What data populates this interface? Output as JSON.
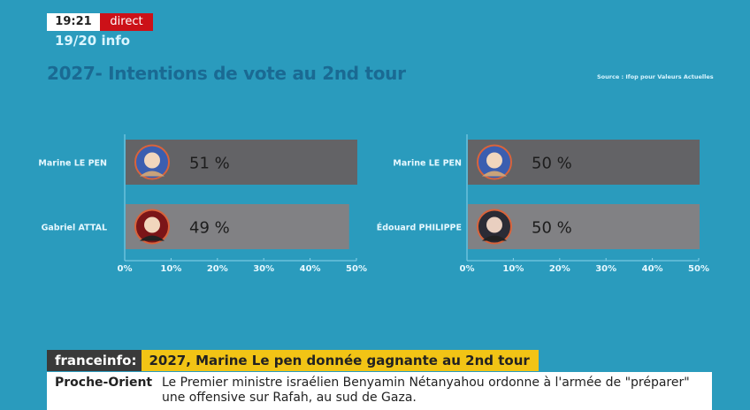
{
  "broadcast": {
    "time": "19:21",
    "live_label": "direct",
    "program": "19/20 info",
    "live_color": "#cc1118"
  },
  "header": {
    "title": "2027- Intentions de vote au 2nd tour",
    "source": "Source : Ifop pour Valeurs Actuelles"
  },
  "chart_data": [
    {
      "type": "bar",
      "orientation": "horizontal",
      "title": "2027- Intentions de vote au 2nd tour",
      "categories": [
        "Marine LE PEN",
        "Gabriel ATTAL"
      ],
      "values": [
        51,
        49
      ],
      "value_labels": [
        "51 %",
        "49 %"
      ],
      "bar_colors": [
        "#636366",
        "#818184"
      ],
      "xlim": [
        0,
        50
      ],
      "xticks": [
        "0%",
        "10%",
        "20%",
        "30%",
        "40%",
        "50%"
      ],
      "grid": false
    },
    {
      "type": "bar",
      "orientation": "horizontal",
      "title": "2027- Intentions de vote au 2nd tour",
      "categories": [
        "Marine LE PEN",
        "Édouard PHILIPPE"
      ],
      "values": [
        50,
        50
      ],
      "value_labels": [
        "50 %",
        "50 %"
      ],
      "bar_colors": [
        "#636366",
        "#818184"
      ],
      "xlim": [
        0,
        50
      ],
      "xticks": [
        "0%",
        "10%",
        "20%",
        "30%",
        "40%",
        "50%"
      ],
      "grid": false
    }
  ],
  "banner": {
    "brand": "franceinfo:",
    "headline": "2027, Marine Le pen donnée gagnante au 2nd tour",
    "brand_color": "#3a3a3a",
    "headline_color": "#f2c415"
  },
  "ticker": {
    "category": "Proche-Orient",
    "text": "Le Premier ministre israélien Benyamin Nétanyahou ordonne à l'armée de \"préparer\" une offensive sur Rafah, au sud de Gaza."
  }
}
